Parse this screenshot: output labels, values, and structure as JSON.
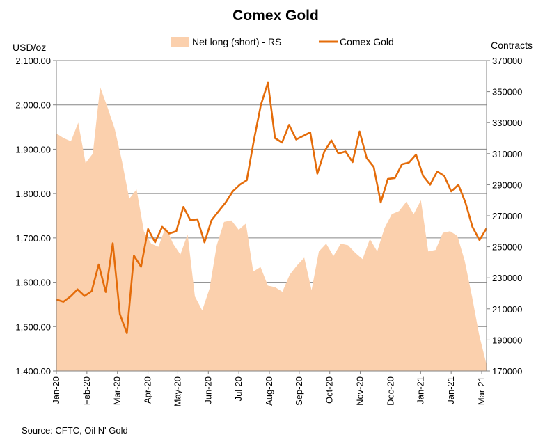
{
  "chart_data": {
    "type": "area+line",
    "title": "Comex Gold",
    "source": "Source: CFTC, Oil N' Gold",
    "left_axis": {
      "label": "USD/oz",
      "range": [
        1400,
        2100
      ],
      "ticks": [
        "1,400.00",
        "1,500.00",
        "1,600.00",
        "1,700.00",
        "1,800.00",
        "1,900.00",
        "2,000.00",
        "2,100.00"
      ],
      "tick_values": [
        1400,
        1500,
        1600,
        1700,
        1800,
        1900,
        2000,
        2100
      ]
    },
    "right_axis": {
      "label": "Contracts",
      "range": [
        170000,
        370000
      ],
      "ticks": [
        "170000",
        "190000",
        "210000",
        "230000",
        "250000",
        "270000",
        "290000",
        "310000",
        "330000",
        "350000",
        "370000"
      ],
      "tick_values": [
        170000,
        190000,
        210000,
        230000,
        250000,
        270000,
        290000,
        310000,
        330000,
        350000,
        370000
      ]
    },
    "x_axis": {
      "range": [
        0,
        62
      ],
      "labels": [
        "Jan-20",
        "Feb-20",
        "Mar-20",
        "Apr-20",
        "May-20",
        "Jun-20",
        "Jul-20",
        "Aug-20",
        "Sep-20",
        "Oct-20",
        "Nov-20",
        "Dec-20",
        "Jan-21",
        "Jan-21",
        "Mar-21"
      ],
      "label_positions": [
        0,
        4.4,
        8.8,
        13.2,
        17.5,
        21.9,
        26.3,
        30.7,
        35.0,
        39.4,
        43.8,
        48.2,
        52.5,
        56.9,
        61.3
      ]
    },
    "legend": [
      "Net long (short) - RS",
      "Comex Gold"
    ],
    "colors": {
      "area": "#fbd0ad",
      "line": "#e46c0a",
      "grid": "#868686",
      "axis": "#808080"
    },
    "series": [
      {
        "name": "Net long (short) - RS",
        "axis": "right",
        "type": "area",
        "values": [
          323000,
          320000,
          318000,
          330000,
          304000,
          310000,
          353000,
          340000,
          326000,
          305000,
          281000,
          287000,
          260000,
          252000,
          250000,
          263000,
          252000,
          245000,
          258000,
          218000,
          209000,
          223000,
          251000,
          266000,
          267000,
          261000,
          265000,
          234000,
          237000,
          225000,
          224000,
          221000,
          232000,
          238000,
          243000,
          222000,
          247000,
          252000,
          244000,
          252000,
          251000,
          246000,
          242000,
          255000,
          247000,
          262000,
          271000,
          273000,
          279000,
          271000,
          280000,
          247000,
          248000,
          259000,
          260000,
          257000,
          241000,
          218000,
          193000,
          174000
        ]
      },
      {
        "name": "Comex Gold",
        "axis": "left",
        "type": "line",
        "values": [
          1561,
          1556,
          1568,
          1584,
          1569,
          1580,
          1640,
          1578,
          1688,
          1528,
          1485,
          1660,
          1635,
          1720,
          1690,
          1725,
          1710,
          1715,
          1770,
          1740,
          1742,
          1690,
          1740,
          1760,
          1780,
          1805,
          1820,
          1830,
          1920,
          2000,
          2050,
          1925,
          1915,
          1955,
          1922,
          1930,
          1938,
          1845,
          1895,
          1920,
          1890,
          1895,
          1871,
          1940,
          1880,
          1860,
          1780,
          1833,
          1835,
          1866,
          1870,
          1888,
          1840,
          1820,
          1850,
          1840,
          1805,
          1820,
          1780,
          1725,
          1695,
          1722
        ]
      }
    ]
  }
}
